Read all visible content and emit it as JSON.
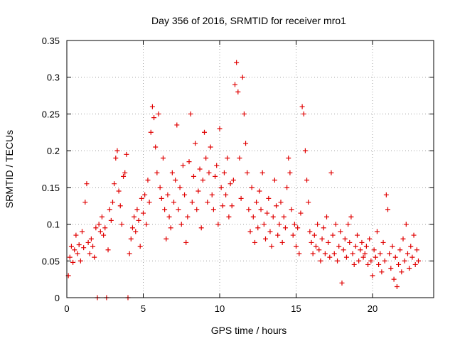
{
  "chart_data": {
    "type": "scatter",
    "title": "Day 356 of 2016, SRMTID for receiver mro1",
    "xlabel": "GPS time / hours",
    "ylabel": "SRMTID / TECUs",
    "xlim": [
      0,
      24
    ],
    "ylim": [
      0,
      0.35
    ],
    "xticks": [
      0,
      5,
      10,
      15,
      20
    ],
    "xtick_labels": [
      "0",
      "5",
      "10",
      "15",
      "20"
    ],
    "yticks": [
      0,
      0.05,
      0.1,
      0.15,
      0.2,
      0.25,
      0.3,
      0.35
    ],
    "ytick_labels": [
      "0",
      "0.05",
      "0.1",
      "0.15",
      "0.2",
      "0.25",
      "0.3",
      "0.35"
    ],
    "grid": true,
    "marker": "+",
    "color": "#e00000",
    "series": [
      {
        "name": "SRMTID",
        "points": [
          [
            0.1,
            0.03
          ],
          [
            0.2,
            0.055
          ],
          [
            0.3,
            0.07
          ],
          [
            0.4,
            0.048
          ],
          [
            0.5,
            0.065
          ],
          [
            0.6,
            0.085
          ],
          [
            0.7,
            0.06
          ],
          [
            0.8,
            0.072
          ],
          [
            0.9,
            0.05
          ],
          [
            1.0,
            0.09
          ],
          [
            1.1,
            0.068
          ],
          [
            1.2,
            0.13
          ],
          [
            1.3,
            0.155
          ],
          [
            1.4,
            0.075
          ],
          [
            1.5,
            0.06
          ],
          [
            1.6,
            0.08
          ],
          [
            1.7,
            0.07
          ],
          [
            1.8,
            0.055
          ],
          [
            1.9,
            0.095
          ],
          [
            2.0,
            0.0
          ],
          [
            2.1,
            0.1
          ],
          [
            2.2,
            0.09
          ],
          [
            2.3,
            0.11
          ],
          [
            2.4,
            0.085
          ],
          [
            2.5,
            0.095
          ],
          [
            2.6,
            0.0
          ],
          [
            2.7,
            0.065
          ],
          [
            2.8,
            0.12
          ],
          [
            2.9,
            0.105
          ],
          [
            3.0,
            0.13
          ],
          [
            3.1,
            0.155
          ],
          [
            3.2,
            0.19
          ],
          [
            3.3,
            0.2
          ],
          [
            3.4,
            0.145
          ],
          [
            3.5,
            0.125
          ],
          [
            3.6,
            0.1
          ],
          [
            3.7,
            0.165
          ],
          [
            3.8,
            0.17
          ],
          [
            3.9,
            0.195
          ],
          [
            4.0,
            0.0
          ],
          [
            4.1,
            0.06
          ],
          [
            4.2,
            0.08
          ],
          [
            4.3,
            0.095
          ],
          [
            4.4,
            0.11
          ],
          [
            4.5,
            0.09
          ],
          [
            4.6,
            0.12
          ],
          [
            4.7,
            0.105
          ],
          [
            4.8,
            0.07
          ],
          [
            4.9,
            0.135
          ],
          [
            5.0,
            0.115
          ],
          [
            5.1,
            0.14
          ],
          [
            5.2,
            0.1
          ],
          [
            5.3,
            0.16
          ],
          [
            5.4,
            0.13
          ],
          [
            5.5,
            0.225
          ],
          [
            5.6,
            0.26
          ],
          [
            5.7,
            0.245
          ],
          [
            5.8,
            0.205
          ],
          [
            5.9,
            0.17
          ],
          [
            6.0,
            0.25
          ],
          [
            6.1,
            0.15
          ],
          [
            6.2,
            0.135
          ],
          [
            6.3,
            0.19
          ],
          [
            6.4,
            0.12
          ],
          [
            6.5,
            0.08
          ],
          [
            6.6,
            0.14
          ],
          [
            6.7,
            0.11
          ],
          [
            6.8,
            0.095
          ],
          [
            6.9,
            0.17
          ],
          [
            7.0,
            0.13
          ],
          [
            7.1,
            0.16
          ],
          [
            7.2,
            0.235
          ],
          [
            7.3,
            0.12
          ],
          [
            7.4,
            0.15
          ],
          [
            7.5,
            0.1
          ],
          [
            7.6,
            0.18
          ],
          [
            7.7,
            0.14
          ],
          [
            7.8,
            0.075
          ],
          [
            7.9,
            0.11
          ],
          [
            8.0,
            0.185
          ],
          [
            8.1,
            0.25
          ],
          [
            8.2,
            0.13
          ],
          [
            8.3,
            0.165
          ],
          [
            8.4,
            0.21
          ],
          [
            8.5,
            0.12
          ],
          [
            8.6,
            0.145
          ],
          [
            8.7,
            0.175
          ],
          [
            8.8,
            0.095
          ],
          [
            8.9,
            0.16
          ],
          [
            9.0,
            0.225
          ],
          [
            9.1,
            0.19
          ],
          [
            9.2,
            0.13
          ],
          [
            9.3,
            0.17
          ],
          [
            9.4,
            0.205
          ],
          [
            9.5,
            0.14
          ],
          [
            9.6,
            0.12
          ],
          [
            9.7,
            0.165
          ],
          [
            9.8,
            0.18
          ],
          [
            9.9,
            0.1
          ],
          [
            10.0,
            0.23
          ],
          [
            10.1,
            0.15
          ],
          [
            10.2,
            0.125
          ],
          [
            10.3,
            0.17
          ],
          [
            10.4,
            0.14
          ],
          [
            10.5,
            0.19
          ],
          [
            10.6,
            0.11
          ],
          [
            10.7,
            0.155
          ],
          [
            10.8,
            0.125
          ],
          [
            10.9,
            0.16
          ],
          [
            11.0,
            0.29
          ],
          [
            11.1,
            0.32
          ],
          [
            11.2,
            0.28
          ],
          [
            11.3,
            0.19
          ],
          [
            11.4,
            0.135
          ],
          [
            11.5,
            0.3
          ],
          [
            11.6,
            0.25
          ],
          [
            11.7,
            0.21
          ],
          [
            11.8,
            0.17
          ],
          [
            11.9,
            0.12
          ],
          [
            12.0,
            0.09
          ],
          [
            12.1,
            0.15
          ],
          [
            12.2,
            0.11
          ],
          [
            12.3,
            0.075
          ],
          [
            12.4,
            0.13
          ],
          [
            12.5,
            0.095
          ],
          [
            12.6,
            0.145
          ],
          [
            12.7,
            0.12
          ],
          [
            12.8,
            0.17
          ],
          [
            12.9,
            0.1
          ],
          [
            13.0,
            0.08
          ],
          [
            13.1,
            0.115
          ],
          [
            13.2,
            0.135
          ],
          [
            13.3,
            0.09
          ],
          [
            13.4,
            0.07
          ],
          [
            13.5,
            0.11
          ],
          [
            13.6,
            0.16
          ],
          [
            13.7,
            0.125
          ],
          [
            13.8,
            0.085
          ],
          [
            13.9,
            0.1
          ],
          [
            14.0,
            0.13
          ],
          [
            14.1,
            0.075
          ],
          [
            14.2,
            0.11
          ],
          [
            14.3,
            0.095
          ],
          [
            14.4,
            0.15
          ],
          [
            14.5,
            0.19
          ],
          [
            14.6,
            0.17
          ],
          [
            14.7,
            0.12
          ],
          [
            14.8,
            0.085
          ],
          [
            14.9,
            0.1
          ],
          [
            15.0,
            0.07
          ],
          [
            15.1,
            0.095
          ],
          [
            15.2,
            0.06
          ],
          [
            15.3,
            0.115
          ],
          [
            15.4,
            0.26
          ],
          [
            15.5,
            0.25
          ],
          [
            15.6,
            0.2
          ],
          [
            15.7,
            0.16
          ],
          [
            15.8,
            0.13
          ],
          [
            15.9,
            0.09
          ],
          [
            16.0,
            0.075
          ],
          [
            16.1,
            0.06
          ],
          [
            16.2,
            0.085
          ],
          [
            16.3,
            0.07
          ],
          [
            16.4,
            0.1
          ],
          [
            16.5,
            0.065
          ],
          [
            16.6,
            0.05
          ],
          [
            16.7,
            0.08
          ],
          [
            16.8,
            0.095
          ],
          [
            16.9,
            0.06
          ],
          [
            17.0,
            0.11
          ],
          [
            17.1,
            0.075
          ],
          [
            17.2,
            0.055
          ],
          [
            17.3,
            0.17
          ],
          [
            17.4,
            0.085
          ],
          [
            17.5,
            0.06
          ],
          [
            17.6,
            0.1
          ],
          [
            17.7,
            0.05
          ],
          [
            17.8,
            0.07
          ],
          [
            17.9,
            0.09
          ],
          [
            18.0,
            0.02
          ],
          [
            18.1,
            0.065
          ],
          [
            18.2,
            0.08
          ],
          [
            18.3,
            0.055
          ],
          [
            18.4,
            0.1
          ],
          [
            18.5,
            0.075
          ],
          [
            18.6,
            0.11
          ],
          [
            18.7,
            0.06
          ],
          [
            18.8,
            0.045
          ],
          [
            18.9,
            0.07
          ],
          [
            19.0,
            0.085
          ],
          [
            19.1,
            0.05
          ],
          [
            19.2,
            0.065
          ],
          [
            19.3,
            0.075
          ],
          [
            19.4,
            0.055
          ],
          [
            19.5,
            0.06
          ],
          [
            19.6,
            0.07
          ],
          [
            19.7,
            0.045
          ],
          [
            19.8,
            0.08
          ],
          [
            19.9,
            0.05
          ],
          [
            20.0,
            0.03
          ],
          [
            20.1,
            0.065
          ],
          [
            20.2,
            0.055
          ],
          [
            20.3,
            0.09
          ],
          [
            20.4,
            0.045
          ],
          [
            20.5,
            0.06
          ],
          [
            20.6,
            0.035
          ],
          [
            20.7,
            0.075
          ],
          [
            20.8,
            0.05
          ],
          [
            20.9,
            0.14
          ],
          [
            21.0,
            0.12
          ],
          [
            21.1,
            0.06
          ],
          [
            21.2,
            0.04
          ],
          [
            21.3,
            0.07
          ],
          [
            21.4,
            0.025
          ],
          [
            21.5,
            0.055
          ],
          [
            21.6,
            0.015
          ],
          [
            21.7,
            0.045
          ],
          [
            21.8,
            0.065
          ],
          [
            21.9,
            0.035
          ],
          [
            22.0,
            0.08
          ],
          [
            22.1,
            0.05
          ],
          [
            22.2,
            0.1
          ],
          [
            22.3,
            0.06
          ],
          [
            22.4,
            0.04
          ],
          [
            22.5,
            0.07
          ],
          [
            22.6,
            0.055
          ],
          [
            22.7,
            0.085
          ],
          [
            22.8,
            0.045
          ],
          [
            22.9,
            0.065
          ],
          [
            23.0,
            0.05
          ]
        ]
      }
    ]
  }
}
